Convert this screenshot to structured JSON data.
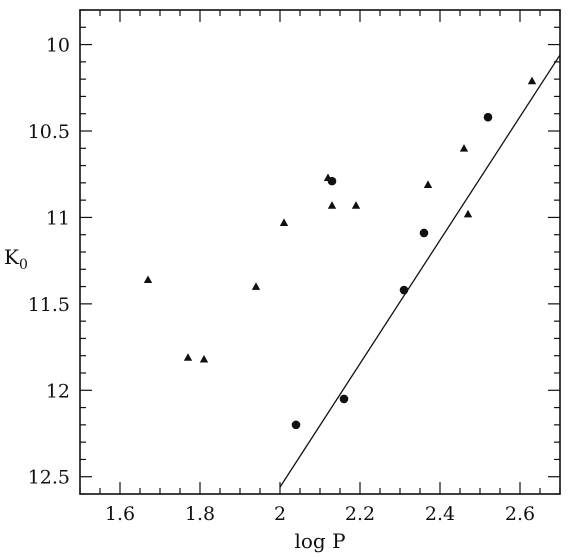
{
  "chart_data": {
    "type": "scatter",
    "title": "",
    "xlabel": "log P",
    "ylabel_main": "K",
    "ylabel_sub": "0",
    "xlim": [
      1.5,
      2.7
    ],
    "ylim": [
      12.6,
      9.8
    ],
    "y_inverted": true,
    "x_ticks": [
      "1.6",
      "1.8",
      "2",
      "2.2",
      "2.4",
      "2.6"
    ],
    "x_tick_values": [
      1.6,
      1.8,
      2.0,
      2.2,
      2.4,
      2.6
    ],
    "y_ticks": [
      "10",
      "10.5",
      "11",
      "11.5",
      "12",
      "12.5"
    ],
    "y_tick_values": [
      10,
      10.5,
      11,
      11.5,
      12,
      12.5
    ],
    "series": [
      {
        "marker": "triangle",
        "points": [
          {
            "x": 1.67,
            "y": 11.36
          },
          {
            "x": 1.77,
            "y": 11.81
          },
          {
            "x": 1.81,
            "y": 11.82
          },
          {
            "x": 1.94,
            "y": 11.4
          },
          {
            "x": 2.01,
            "y": 11.03
          },
          {
            "x": 2.12,
            "y": 10.77
          },
          {
            "x": 2.13,
            "y": 10.93
          },
          {
            "x": 2.19,
            "y": 10.93
          },
          {
            "x": 2.37,
            "y": 10.81
          },
          {
            "x": 2.46,
            "y": 10.6
          },
          {
            "x": 2.47,
            "y": 10.98
          },
          {
            "x": 2.63,
            "y": 10.21
          }
        ]
      },
      {
        "marker": "circle",
        "points": [
          {
            "x": 2.13,
            "y": 10.79
          },
          {
            "x": 2.04,
            "y": 12.2
          },
          {
            "x": 2.16,
            "y": 12.05
          },
          {
            "x": 2.31,
            "y": 11.42
          },
          {
            "x": 2.36,
            "y": 11.09
          },
          {
            "x": 2.52,
            "y": 10.42
          }
        ]
      }
    ],
    "fit_line": {
      "x": [
        2.0,
        2.7
      ],
      "y": [
        12.56,
        10.06
      ]
    }
  }
}
